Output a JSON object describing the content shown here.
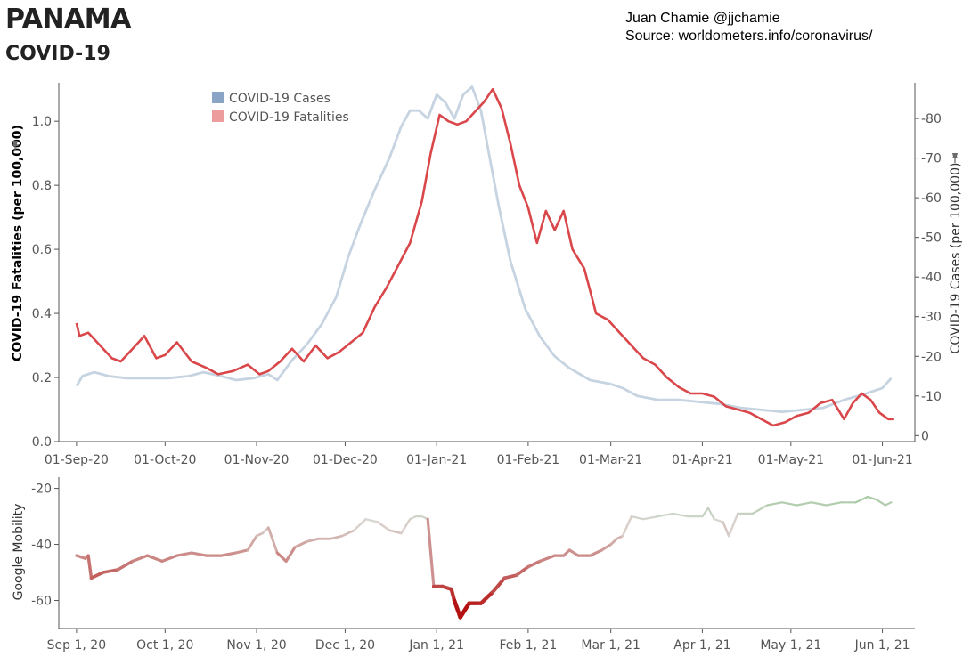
{
  "header": {
    "country": "PANAMA",
    "subtitle": "COVID-19",
    "author": "Juan Chamie @jjchamie",
    "source": "Source: worldometers.info/coronavirus/"
  },
  "colors": {
    "cases": "#c6d3e0",
    "cases_legend": "#8aa4c6",
    "fatalities": "#d9474a",
    "fatalities_legend": "#ec9c9c",
    "mobility_low": "#b00000",
    "mobility_mid": "#dad7d3",
    "mobility_high": "#86c186",
    "axis": "#555555",
    "tick_label": "#555555"
  },
  "chart_data": [
    {
      "type": "line",
      "legend": [
        "COVID-19 Cases",
        "COVID-19 Fatalities"
      ],
      "legend_placement": "top-left",
      "ylabel": "COVID-19 Fatalities (per 100,000)",
      "ylabel_right": "COVID-19 Cases (per 100,000)",
      "ylim": [
        -0.0,
        1.12
      ],
      "ylim_right": [
        -1.5,
        89
      ],
      "yticks": [
        0.0,
        0.2,
        0.4,
        0.6,
        0.8,
        1.0
      ],
      "yticks_right": [
        0,
        10,
        20,
        30,
        40,
        50,
        60,
        70,
        80
      ],
      "xlim": [
        "2020-08-26",
        "2021-06-12"
      ],
      "xticks": [
        "2020-09-01",
        "2020-10-01",
        "2020-11-01",
        "2020-12-01",
        "2021-01-01",
        "2021-02-01",
        "2021-03-01",
        "2021-04-01",
        "2021-05-01",
        "2021-06-01"
      ],
      "xticklabels": [
        "01-Sep-20",
        "01-Oct-20",
        "01-Nov-20",
        "01-Dec-20",
        "01-Jan-21",
        "01-Feb-21",
        "01-Mar-21",
        "01-Apr-21",
        "01-May-21",
        "01-Jun-21"
      ],
      "grid": false,
      "series": [
        {
          "name": "COVID-19 Cases",
          "axis": "right",
          "x": [
            "2020-09-01",
            "2020-09-03",
            "2020-09-07",
            "2020-09-12",
            "2020-09-18",
            "2020-09-25",
            "2020-10-02",
            "2020-10-09",
            "2020-10-14",
            "2020-10-20",
            "2020-10-25",
            "2020-10-31",
            "2020-11-05",
            "2020-11-08",
            "2020-11-13",
            "2020-11-18",
            "2020-11-23",
            "2020-11-28",
            "2020-12-02",
            "2020-12-06",
            "2020-12-11",
            "2020-12-16",
            "2020-12-20",
            "2020-12-23",
            "2020-12-26",
            "2020-12-29",
            "2021-01-01",
            "2021-01-04",
            "2021-01-07",
            "2021-01-10",
            "2021-01-13",
            "2021-01-16",
            "2021-01-19",
            "2021-01-22",
            "2021-01-26",
            "2021-01-31",
            "2021-02-05",
            "2021-02-10",
            "2021-02-15",
            "2021-02-22",
            "2021-03-01",
            "2021-03-05",
            "2021-03-10",
            "2021-03-17",
            "2021-03-24",
            "2021-03-31",
            "2021-04-07",
            "2021-04-14",
            "2021-04-21",
            "2021-04-28",
            "2021-05-05",
            "2021-05-12",
            "2021-05-19",
            "2021-05-26",
            "2021-06-01",
            "2021-06-04"
          ],
          "values": [
            12.5,
            15,
            16,
            15,
            14.5,
            14.5,
            14.5,
            15,
            16,
            15,
            14,
            14.5,
            15.5,
            14,
            19,
            23,
            28,
            35,
            45,
            53,
            62,
            70,
            78,
            82,
            82,
            80,
            86,
            84,
            80,
            86,
            88,
            82,
            70,
            58,
            44,
            32,
            25,
            20,
            17,
            14,
            13,
            12,
            10,
            9,
            9,
            8.5,
            8,
            7,
            6.5,
            6,
            6.5,
            7,
            9,
            10.5,
            12,
            14.5
          ]
        },
        {
          "name": "COVID-19 Fatalities",
          "axis": "left",
          "x": [
            "2020-09-01",
            "2020-09-02",
            "2020-09-05",
            "2020-09-09",
            "2020-09-13",
            "2020-09-16",
            "2020-09-21",
            "2020-09-24",
            "2020-09-28",
            "2020-10-01",
            "2020-10-05",
            "2020-10-10",
            "2020-10-15",
            "2020-10-19",
            "2020-10-24",
            "2020-10-29",
            "2020-11-02",
            "2020-11-05",
            "2020-11-09",
            "2020-11-13",
            "2020-11-17",
            "2020-11-21",
            "2020-11-25",
            "2020-11-29",
            "2020-12-03",
            "2020-12-07",
            "2020-12-11",
            "2020-12-15",
            "2020-12-19",
            "2020-12-23",
            "2020-12-27",
            "2020-12-30",
            "2021-01-02",
            "2021-01-05",
            "2021-01-08",
            "2021-01-11",
            "2021-01-14",
            "2021-01-17",
            "2021-01-20",
            "2021-01-23",
            "2021-01-26",
            "2021-01-29",
            "2021-02-01",
            "2021-02-04",
            "2021-02-07",
            "2021-02-10",
            "2021-02-13",
            "2021-02-16",
            "2021-02-20",
            "2021-02-24",
            "2021-02-28",
            "2021-03-04",
            "2021-03-08",
            "2021-03-12",
            "2021-03-16",
            "2021-03-20",
            "2021-03-24",
            "2021-03-28",
            "2021-04-01",
            "2021-04-05",
            "2021-04-09",
            "2021-04-13",
            "2021-04-17",
            "2021-04-21",
            "2021-04-25",
            "2021-04-29",
            "2021-05-03",
            "2021-05-07",
            "2021-05-11",
            "2021-05-15",
            "2021-05-19",
            "2021-05-22",
            "2021-05-25",
            "2021-05-28",
            "2021-05-31",
            "2021-06-03",
            "2021-06-05"
          ],
          "values": [
            0.37,
            0.33,
            0.34,
            0.3,
            0.26,
            0.25,
            0.3,
            0.33,
            0.26,
            0.27,
            0.31,
            0.25,
            0.23,
            0.21,
            0.22,
            0.24,
            0.21,
            0.22,
            0.25,
            0.29,
            0.25,
            0.3,
            0.26,
            0.28,
            0.31,
            0.34,
            0.42,
            0.48,
            0.55,
            0.62,
            0.75,
            0.9,
            1.02,
            1.0,
            0.99,
            1.0,
            1.03,
            1.06,
            1.1,
            1.04,
            0.93,
            0.8,
            0.73,
            0.62,
            0.72,
            0.66,
            0.72,
            0.6,
            0.54,
            0.4,
            0.38,
            0.34,
            0.3,
            0.26,
            0.24,
            0.2,
            0.17,
            0.15,
            0.15,
            0.14,
            0.11,
            0.1,
            0.09,
            0.07,
            0.05,
            0.06,
            0.08,
            0.09,
            0.12,
            0.13,
            0.07,
            0.12,
            0.15,
            0.13,
            0.09,
            0.07,
            0.07
          ]
        }
      ]
    },
    {
      "type": "line",
      "ylabel": "Google Mobility",
      "ylim": [
        -70,
        -16
      ],
      "yticks": [
        -20,
        -40,
        -60
      ],
      "xlim": [
        "2020-08-26",
        "2021-06-12"
      ],
      "xticks": [
        "2020-09-01",
        "2020-10-01",
        "2020-11-01",
        "2020-12-01",
        "2021-01-01",
        "2021-02-01",
        "2021-03-01",
        "2021-04-01",
        "2021-05-01",
        "2021-06-01"
      ],
      "xticklabels": [
        "Sep 1, 20",
        "Oct 1, 20",
        "Nov 1, 20",
        "Dec 1, 20",
        "Jan 1, 21",
        "Feb 1, 21",
        "Mar 1, 21",
        "Apr 1, 21",
        "May 1, 21",
        "Jun 1, 21"
      ],
      "grid": false,
      "series": [
        {
          "x": [
            "2020-09-01",
            "2020-09-04",
            "2020-09-05",
            "2020-09-06",
            "2020-09-10",
            "2020-09-15",
            "2020-09-20",
            "2020-09-25",
            "2020-09-30",
            "2020-10-05",
            "2020-10-10",
            "2020-10-15",
            "2020-10-20",
            "2020-10-25",
            "2020-10-29",
            "2020-11-01",
            "2020-11-03",
            "2020-11-05",
            "2020-11-08",
            "2020-11-11",
            "2020-11-14",
            "2020-11-18",
            "2020-11-22",
            "2020-11-26",
            "2020-11-30",
            "2020-12-04",
            "2020-12-08",
            "2020-12-12",
            "2020-12-16",
            "2020-12-20",
            "2020-12-23",
            "2020-12-25",
            "2020-12-27",
            "2020-12-29",
            "2020-12-31",
            "2021-01-03",
            "2021-01-06",
            "2021-01-07",
            "2021-01-09",
            "2021-01-12",
            "2021-01-16",
            "2021-01-20",
            "2021-01-24",
            "2021-01-28",
            "2021-02-01",
            "2021-02-05",
            "2021-02-10",
            "2021-02-13",
            "2021-02-15",
            "2021-02-18",
            "2021-02-22",
            "2021-02-26",
            "2021-03-01",
            "2021-03-03",
            "2021-03-05",
            "2021-03-08",
            "2021-03-12",
            "2021-03-17",
            "2021-03-22",
            "2021-03-27",
            "2021-04-01",
            "2021-04-03",
            "2021-04-05",
            "2021-04-08",
            "2021-04-10",
            "2021-04-13",
            "2021-04-18",
            "2021-04-23",
            "2021-04-28",
            "2021-05-03",
            "2021-05-08",
            "2021-05-13",
            "2021-05-18",
            "2021-05-23",
            "2021-05-27",
            "2021-05-30",
            "2021-06-02",
            "2021-06-04"
          ],
          "values": [
            -44,
            -45,
            -44,
            -52,
            -50,
            -49,
            -46,
            -44,
            -46,
            -44,
            -43,
            -44,
            -44,
            -43,
            -42,
            -37,
            -36,
            -34,
            -43,
            -46,
            -41,
            -39,
            -38,
            -38,
            -37,
            -35,
            -31,
            -32,
            -35,
            -36,
            -31,
            -30,
            -30,
            -31,
            -55,
            -55,
            -56,
            -60,
            -66,
            -61,
            -61,
            -57,
            -52,
            -51,
            -48,
            -46,
            -44,
            -44,
            -42,
            -44,
            -44,
            -42,
            -40,
            -38,
            -37,
            -30,
            -31,
            -30,
            -29,
            -30,
            -30,
            -27,
            -31,
            -32,
            -37,
            -29,
            -29,
            -26,
            -25,
            -26,
            -25,
            -26,
            -25,
            -25,
            -23,
            -24,
            -26,
            -25
          ]
        }
      ]
    }
  ]
}
